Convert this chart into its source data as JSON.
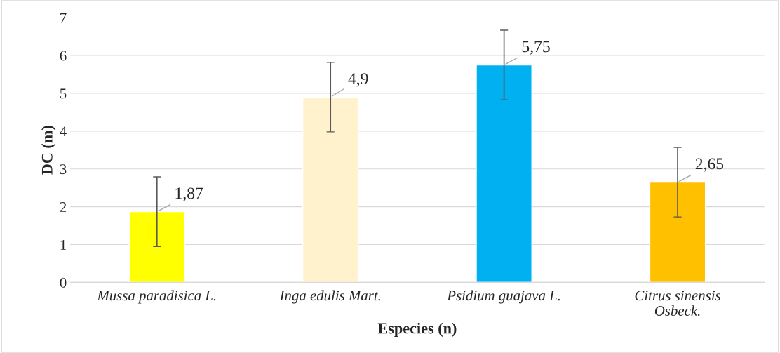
{
  "chart_data": {
    "type": "bar",
    "categories": [
      "Mussa paradisica L.",
      "Inga edulis Mart.",
      "Psidium guajava L.",
      "Citrus sinensis\nOsbeck."
    ],
    "values": [
      1.87,
      4.9,
      5.75,
      2.65
    ],
    "colors": [
      "#ffff00",
      "#fff2cc",
      "#00b0f0",
      "#ffc000"
    ],
    "errors": [
      0.92,
      0.92,
      0.92,
      0.92
    ],
    "value_labels": [
      "1,87",
      "4,9",
      "5,75",
      "2,65"
    ],
    "xlabel": "Especies (n)",
    "ylabel": "DC (m)",
    "ylim": [
      0,
      7
    ],
    "yticks": [
      0,
      1,
      2,
      3,
      4,
      5,
      6,
      7
    ],
    "grid": "y"
  }
}
